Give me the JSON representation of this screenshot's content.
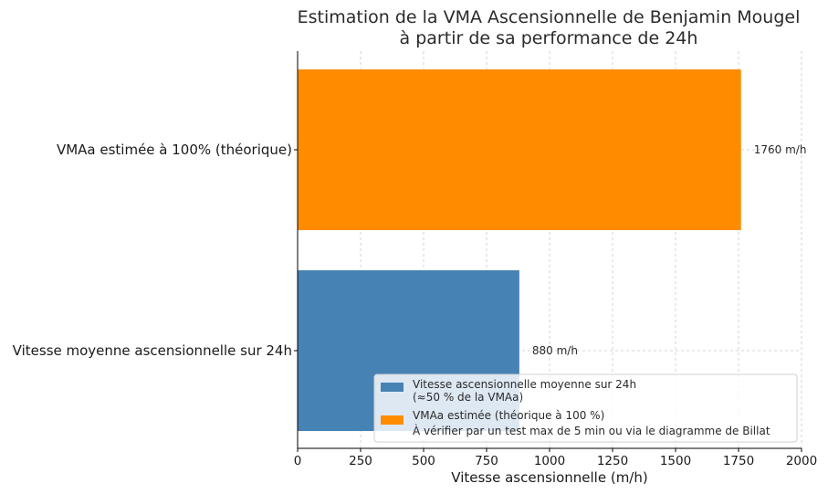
{
  "chart_data": {
    "type": "bar",
    "orientation": "horizontal",
    "title_lines": [
      "Estimation de la VMA Ascensionnelle de Benjamin Mougel",
      "à partir de sa performance de 24h"
    ],
    "xlabel": "Vitesse ascensionnelle (m/h)",
    "ylabel": "",
    "xlim": [
      0,
      2000
    ],
    "xticks": [
      0,
      250,
      500,
      750,
      1000,
      1250,
      1500,
      1750,
      2000
    ],
    "grid": true,
    "legend_position": "lower-right",
    "bars": [
      {
        "category": "Vitesse moyenne ascensionnelle sur 24h",
        "value": 880,
        "value_label": "880 m/h",
        "color": "#4682b4",
        "legend_lines": [
          "Vitesse ascensionnelle moyenne sur 24h",
          "(≈50 % de la VMAa)"
        ]
      },
      {
        "category": "VMAa estimée à 100% (théorique)",
        "value": 1760,
        "value_label": "1760 m/h",
        "color": "#ff8c00",
        "legend_lines": [
          "VMAa estimée (théorique à 100 %)",
          "À vérifier par un test max de 5 min ou via le diagramme de Billat"
        ]
      }
    ]
  }
}
